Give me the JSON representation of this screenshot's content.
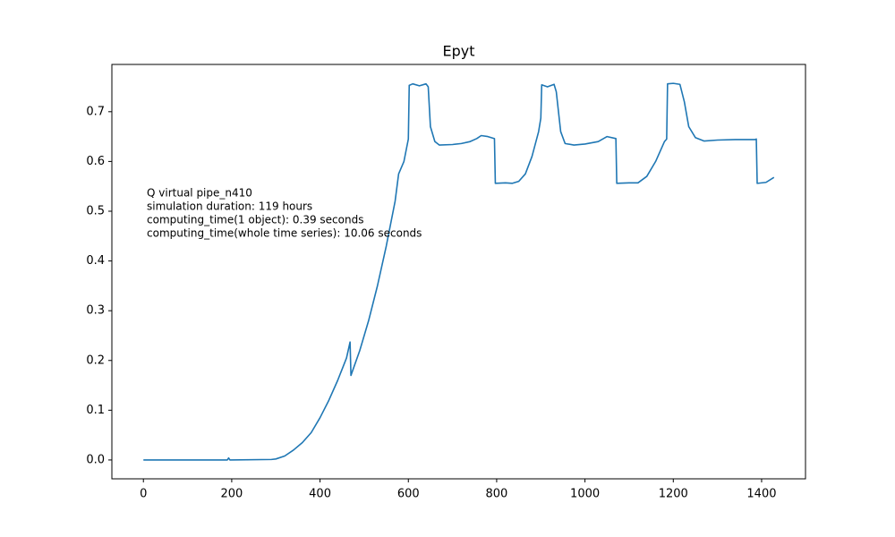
{
  "chart_data": {
    "type": "line",
    "title": "Epyt",
    "annotations": [
      "Q virtual pipe_n410",
      "simulation duration:  119 hours",
      "computing_time(1 object):  0.39 seconds",
      "computing_time(whole time series):  10.06 seconds"
    ],
    "x": [
      0,
      100,
      190,
      193,
      196,
      290,
      300,
      320,
      340,
      360,
      380,
      400,
      420,
      440,
      460,
      468,
      470,
      490,
      510,
      530,
      550,
      570,
      578,
      590,
      600,
      602,
      610,
      625,
      640,
      645,
      650,
      660,
      670,
      700,
      720,
      740,
      755,
      765,
      780,
      795,
      797,
      820,
      835,
      850,
      865,
      880,
      895,
      900,
      902,
      915,
      930,
      935,
      945,
      955,
      975,
      1000,
      1030,
      1050,
      1070,
      1072,
      1100,
      1120,
      1140,
      1160,
      1180,
      1185,
      1187,
      1200,
      1215,
      1225,
      1235,
      1250,
      1270,
      1300,
      1340,
      1385,
      1388,
      1390,
      1410,
      1428
    ],
    "series": [
      {
        "color": "#1f77b4",
        "values": [
          0,
          0,
          0,
          0.004,
          0,
          0.001,
          0.002,
          0.008,
          0.02,
          0.035,
          0.055,
          0.085,
          0.12,
          0.16,
          0.205,
          0.237,
          0.17,
          0.22,
          0.28,
          0.35,
          0.43,
          0.52,
          0.575,
          0.6,
          0.645,
          0.753,
          0.756,
          0.752,
          0.756,
          0.75,
          0.67,
          0.64,
          0.633,
          0.634,
          0.636,
          0.64,
          0.646,
          0.652,
          0.65,
          0.646,
          0.556,
          0.557,
          0.556,
          0.56,
          0.575,
          0.61,
          0.66,
          0.687,
          0.754,
          0.75,
          0.755,
          0.74,
          0.66,
          0.636,
          0.633,
          0.635,
          0.64,
          0.65,
          0.646,
          0.556,
          0.557,
          0.557,
          0.57,
          0.6,
          0.64,
          0.645,
          0.756,
          0.757,
          0.755,
          0.72,
          0.67,
          0.648,
          0.641,
          0.643,
          0.644,
          0.644,
          0.645,
          0.556,
          0.558,
          0.568
        ]
      }
    ],
    "xlim": [
      -71.4,
      1499.4
    ],
    "ylim": [
      -0.0379,
      0.795
    ],
    "xticks": [
      0,
      200,
      400,
      600,
      800,
      1000,
      1200,
      1400
    ],
    "yticks": [
      {
        "value": 0,
        "label": "0.0"
      },
      0.1,
      0.2,
      0.3,
      0.4,
      0.5,
      0.6,
      0.7
    ]
  }
}
